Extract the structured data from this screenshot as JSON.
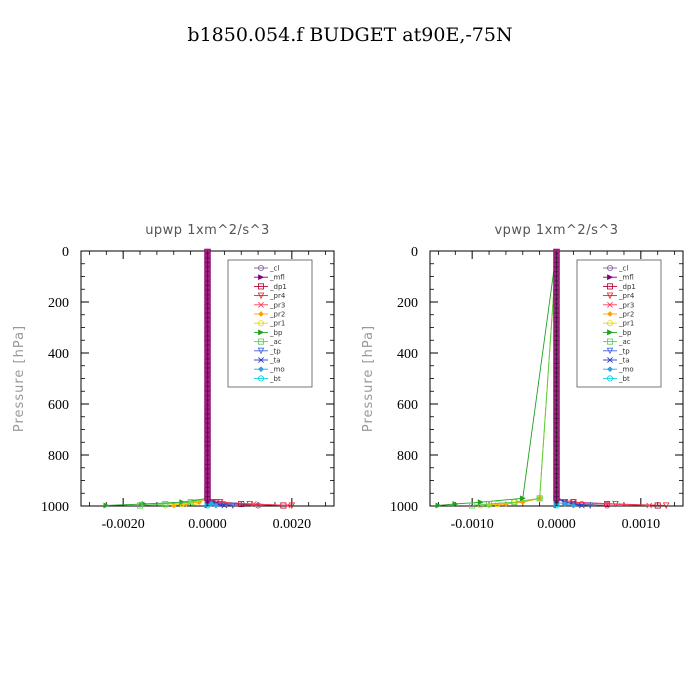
{
  "figure": {
    "title": "b1850.054.f  BUDGET at90E,-75N"
  },
  "chart_data": [
    {
      "type": "line",
      "title": "upwp   1xm^2/s^3",
      "xlabel": "",
      "ylabel": "Pressure [hPa]",
      "xlim": [
        -0.003,
        0.003
      ],
      "ylim": [
        1000,
        0
      ],
      "xticks": [
        -0.002,
        0.0,
        0.002
      ],
      "xtick_labels": [
        "-0.0020",
        "0.0000",
        "0.0020"
      ],
      "yticks": [
        0,
        200,
        400,
        600,
        800,
        1000
      ],
      "ytick_labels": [
        "0",
        "200",
        "400",
        "600",
        "800",
        "1000"
      ],
      "legend": "top-right",
      "series": [
        {
          "name": "_cl",
          "color": "#7f5fa0",
          "x": [
            0,
            0,
            0.0001,
            0.0004,
            0.0012
          ],
          "y": [
            0,
            970,
            985,
            992,
            998
          ]
        },
        {
          "name": "_mfl",
          "color": "#800080",
          "x": [
            0,
            0,
            0,
            0,
            0
          ],
          "y": [
            0,
            970,
            985,
            992,
            998
          ]
        },
        {
          "name": "_dp1",
          "color": "#b00030",
          "x": [
            0,
            0,
            0.0002,
            0.0008,
            0.0018
          ],
          "y": [
            0,
            970,
            985,
            992,
            998
          ]
        },
        {
          "name": "_pr4",
          "color": "#e02020",
          "x": [
            0,
            0,
            0.0003,
            0.001,
            0.002
          ],
          "y": [
            0,
            970,
            985,
            992,
            998
          ]
        },
        {
          "name": "_pr3",
          "color": "#ff4060",
          "x": [
            0,
            0,
            0.0003,
            0.0011,
            0.0019
          ],
          "y": [
            0,
            970,
            985,
            992,
            998
          ]
        },
        {
          "name": "_pr2",
          "color": "#ffa000",
          "x": [
            0,
            0,
            -0.0002,
            -0.0005,
            -0.0008
          ],
          "y": [
            0,
            970,
            985,
            992,
            998
          ]
        },
        {
          "name": "_pr1",
          "color": "#e8d800",
          "x": [
            0,
            0,
            -0.0003,
            -0.0006,
            -0.001
          ],
          "y": [
            0,
            970,
            985,
            992,
            998
          ]
        },
        {
          "name": "_bp",
          "color": "#20a020",
          "x": [
            0,
            0,
            -0.0006,
            -0.0015,
            -0.0024
          ],
          "y": [
            0,
            970,
            985,
            992,
            998
          ]
        },
        {
          "name": "_ac",
          "color": "#50d050",
          "x": [
            0,
            0,
            -0.0004,
            -0.001,
            -0.0016
          ],
          "y": [
            0,
            970,
            985,
            992,
            998
          ]
        },
        {
          "name": "_tp",
          "color": "#4060e0",
          "x": [
            0,
            0,
            0.0001,
            0.0003,
            0.0006
          ],
          "y": [
            0,
            970,
            985,
            992,
            998
          ]
        },
        {
          "name": "_ta",
          "color": "#2040c0",
          "x": [
            0,
            0,
            0.0001,
            0.0002,
            0.0004
          ],
          "y": [
            0,
            970,
            985,
            992,
            998
          ]
        },
        {
          "name": "_mo",
          "color": "#30a0e0",
          "x": [
            0,
            0,
            0,
            0.0001,
            0.0002
          ],
          "y": [
            0,
            970,
            985,
            992,
            998
          ]
        },
        {
          "name": "_bt",
          "color": "#00d0e0",
          "x": [
            0,
            0,
            0,
            0,
            0
          ],
          "y": [
            0,
            970,
            985,
            992,
            998
          ]
        }
      ]
    },
    {
      "type": "line",
      "title": "vpwp   1xm^2/s^3",
      "xlabel": "",
      "ylabel": "Pressure [hPa]",
      "xlim": [
        -0.0015,
        0.0015
      ],
      "ylim": [
        1000,
        0
      ],
      "xticks": [
        -0.001,
        0.0,
        0.001
      ],
      "xtick_labels": [
        "-0.0010",
        "0.0000",
        "0.0010"
      ],
      "yticks": [
        0,
        200,
        400,
        600,
        800,
        1000
      ],
      "ytick_labels": [
        "0",
        "200",
        "400",
        "600",
        "800",
        "1000"
      ],
      "legend": "top-right",
      "series": [
        {
          "name": "_cl",
          "color": "#7f5fa0",
          "x": [
            0,
            0,
            0.0001,
            0.0003,
            0.0006
          ],
          "y": [
            0,
            970,
            985,
            992,
            998
          ]
        },
        {
          "name": "_mfl",
          "color": "#800080",
          "x": [
            0,
            0,
            0,
            0,
            0
          ],
          "y": [
            0,
            970,
            985,
            992,
            998
          ]
        },
        {
          "name": "_dp1",
          "color": "#b00030",
          "x": [
            0,
            0,
            0.0002,
            0.0006,
            0.0012
          ],
          "y": [
            0,
            970,
            985,
            992,
            998
          ]
        },
        {
          "name": "_pr4",
          "color": "#e02020",
          "x": [
            0,
            0,
            0.0002,
            0.0007,
            0.0013
          ],
          "y": [
            0,
            970,
            985,
            992,
            998
          ]
        },
        {
          "name": "_pr3",
          "color": "#ff4060",
          "x": [
            0,
            0,
            0.0002,
            0.0006,
            0.0011
          ],
          "y": [
            0,
            970,
            985,
            992,
            998
          ]
        },
        {
          "name": "_pr2",
          "color": "#ffa000",
          "x": [
            0,
            -0.0002,
            -0.0004,
            -0.0006,
            -0.0008
          ],
          "y": [
            0,
            970,
            985,
            992,
            998
          ]
        },
        {
          "name": "_pr1",
          "color": "#e8d800",
          "x": [
            0,
            -0.0002,
            -0.0005,
            -0.0007,
            -0.0009
          ],
          "y": [
            0,
            970,
            985,
            992,
            998
          ]
        },
        {
          "name": "_bp",
          "color": "#20a020",
          "x": [
            0,
            -0.0004,
            -0.0009,
            -0.0012,
            -0.0014
          ],
          "y": [
            0,
            970,
            985,
            992,
            998
          ]
        },
        {
          "name": "_ac",
          "color": "#50d050",
          "x": [
            0,
            -0.0002,
            -0.0005,
            -0.0008,
            -0.001
          ],
          "y": [
            0,
            970,
            985,
            992,
            998
          ]
        },
        {
          "name": "_tp",
          "color": "#4060e0",
          "x": [
            0,
            0,
            0.0001,
            0.0002,
            0.0004
          ],
          "y": [
            0,
            970,
            985,
            992,
            998
          ]
        },
        {
          "name": "_ta",
          "color": "#2040c0",
          "x": [
            0,
            0,
            0.0001,
            0.0002,
            0.0003
          ],
          "y": [
            0,
            970,
            985,
            992,
            998
          ]
        },
        {
          "name": "_mo",
          "color": "#30a0e0",
          "x": [
            0,
            0,
            0,
            0.0001,
            0.0002
          ],
          "y": [
            0,
            970,
            985,
            992,
            998
          ]
        },
        {
          "name": "_bt",
          "color": "#00d0e0",
          "x": [
            0,
            0,
            0,
            0,
            0
          ],
          "y": [
            0,
            970,
            985,
            992,
            998
          ]
        }
      ]
    }
  ]
}
